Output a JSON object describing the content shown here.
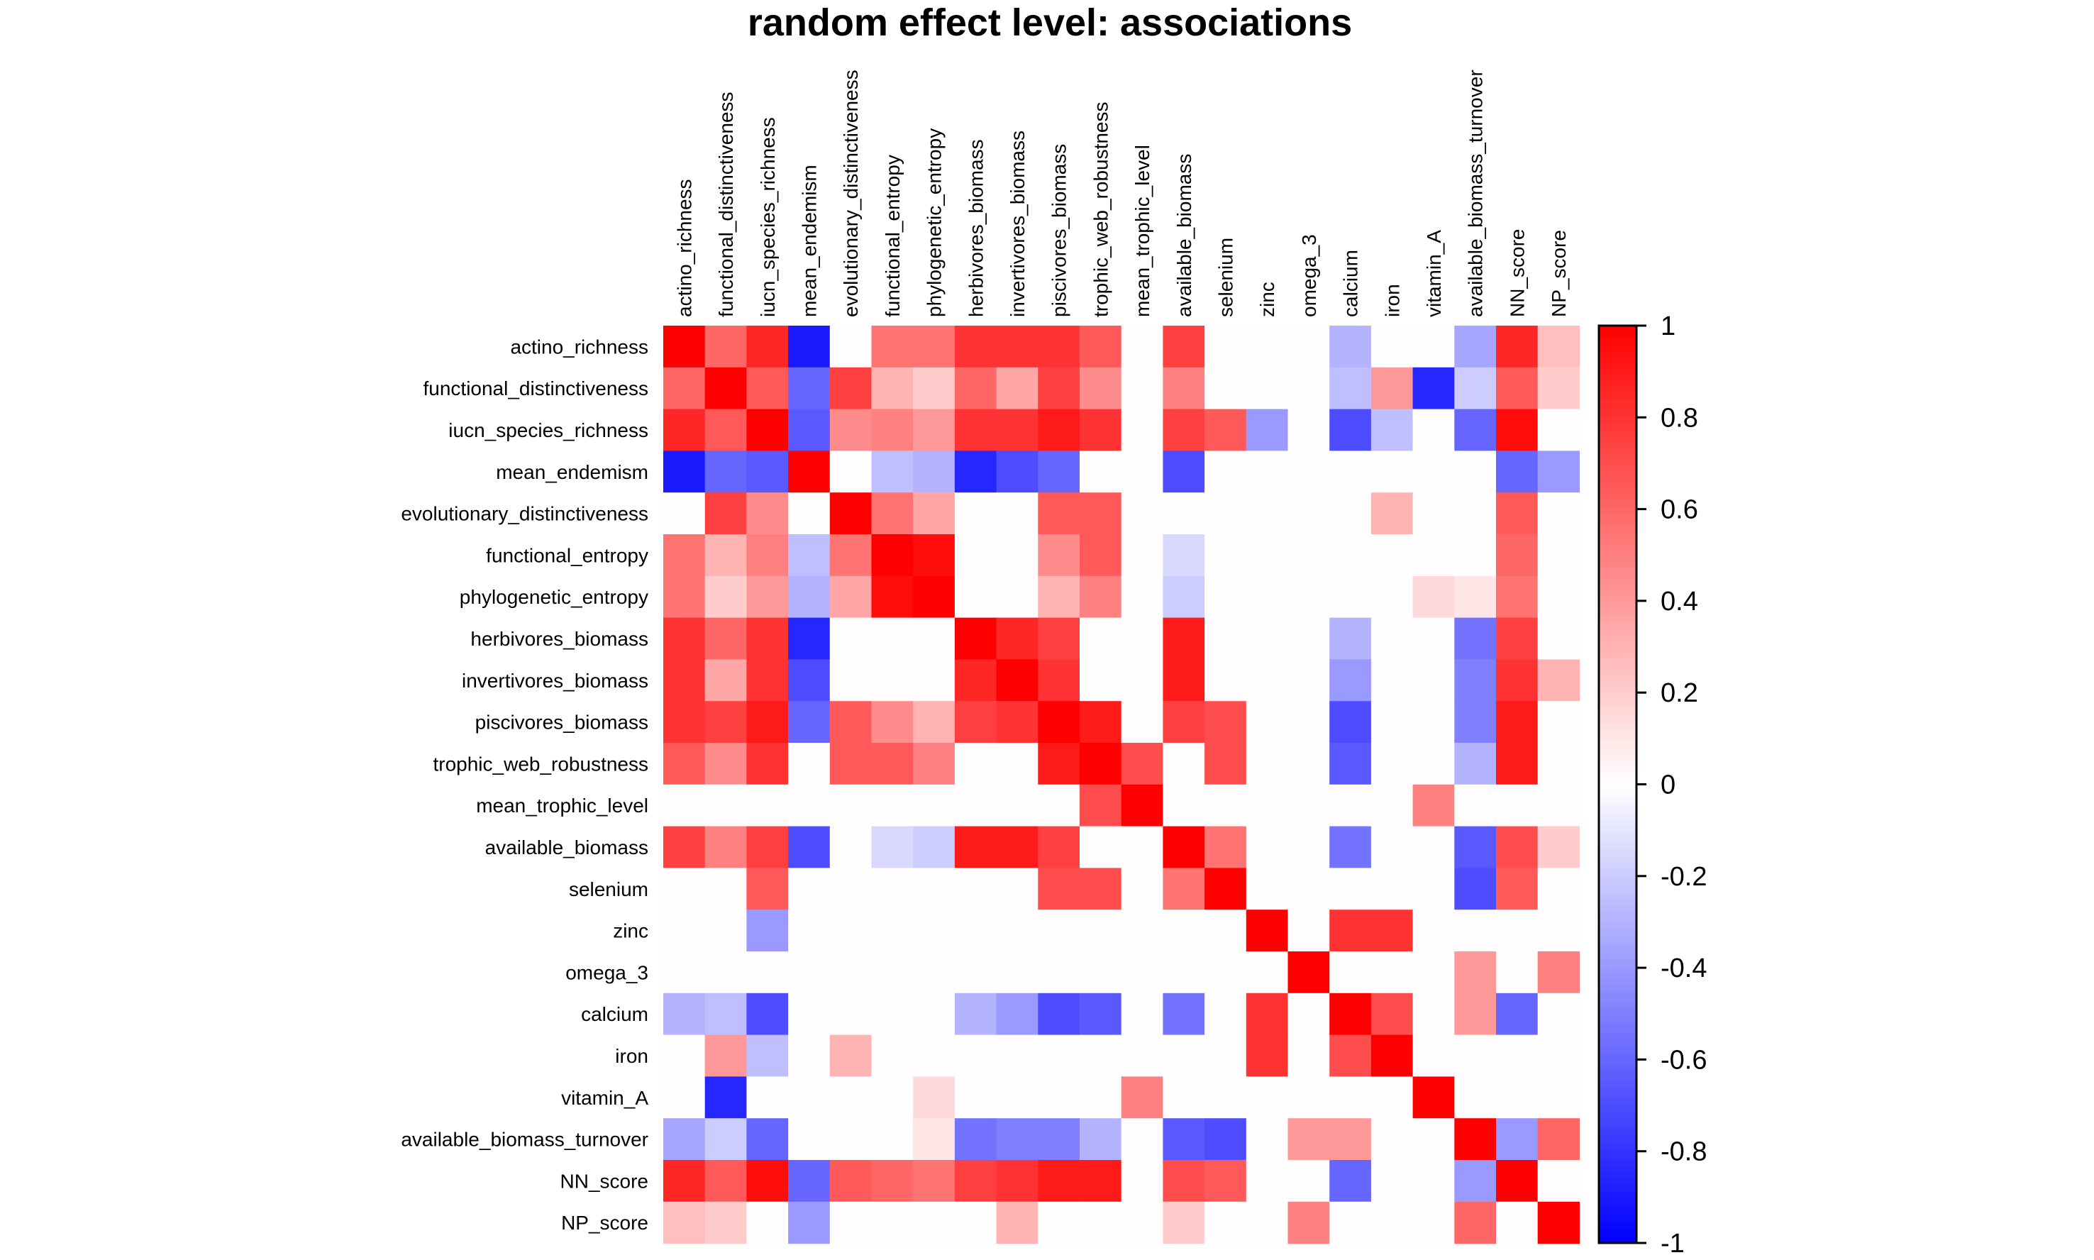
{
  "chart_data": {
    "type": "heatmap",
    "title": "random effect level: associations",
    "variables": [
      "actino_richness",
      "functional_distinctiveness",
      "iucn_species_richness",
      "mean_endemism",
      "evolutionary_distinctiveness",
      "functional_entropy",
      "phylogenetic_entropy",
      "herbivores_biomass",
      "invertivores_biomass",
      "piscivores_biomass",
      "trophic_web_robustness",
      "mean_trophic_level",
      "available_biomass",
      "selenium",
      "zinc",
      "omega_3",
      "calcium",
      "iron",
      "vitamin_A",
      "available_biomass_turnover",
      "NN_score",
      "NP_score"
    ],
    "matrix": [
      [
        1,
        0.6,
        0.85,
        -0.9,
        0,
        0.55,
        0.55,
        0.8,
        0.8,
        0.8,
        0.65,
        0,
        0.75,
        0,
        0,
        0,
        -0.3,
        0,
        0,
        -0.35,
        0.85,
        0.25
      ],
      [
        0.6,
        1,
        0.65,
        -0.6,
        0.75,
        0.3,
        0.2,
        0.6,
        0.35,
        0.75,
        0.45,
        0,
        0.5,
        0,
        0,
        0,
        -0.25,
        0.4,
        -0.85,
        -0.2,
        0.65,
        0.2
      ],
      [
        0.85,
        0.65,
        1,
        -0.65,
        0.45,
        0.5,
        0.4,
        0.8,
        0.8,
        0.9,
        0.8,
        0,
        0.75,
        0.65,
        -0.4,
        0,
        -0.7,
        -0.25,
        0,
        -0.6,
        0.95,
        0
      ],
      [
        -0.9,
        -0.6,
        -0.65,
        1,
        0,
        -0.25,
        -0.3,
        -0.85,
        -0.7,
        -0.6,
        0,
        0,
        -0.7,
        0,
        0,
        0,
        0,
        0,
        0,
        0,
        -0.6,
        -0.4
      ],
      [
        0,
        0.75,
        0.45,
        0,
        1,
        0.55,
        0.35,
        0,
        0,
        0.65,
        0.65,
        0,
        0,
        0,
        0,
        0,
        0,
        0.3,
        0,
        0,
        0.65,
        0
      ],
      [
        0.55,
        0.3,
        0.5,
        -0.25,
        0.55,
        1,
        0.95,
        0,
        0,
        0.45,
        0.65,
        0,
        -0.15,
        0,
        0,
        0,
        0,
        0,
        0,
        0,
        0.6,
        0
      ],
      [
        0.55,
        0.2,
        0.4,
        -0.3,
        0.35,
        0.95,
        1,
        0,
        0,
        0.3,
        0.5,
        0,
        -0.2,
        0,
        0,
        0,
        0,
        0,
        0.15,
        0.1,
        0.55,
        0
      ],
      [
        0.8,
        0.6,
        0.8,
        -0.85,
        0,
        0,
        0,
        1,
        0.85,
        0.75,
        0,
        0,
        0.9,
        0,
        0,
        0,
        -0.3,
        0,
        0,
        -0.55,
        0.75,
        0
      ],
      [
        0.8,
        0.35,
        0.8,
        -0.7,
        0,
        0,
        0,
        0.85,
        1,
        0.8,
        0,
        0,
        0.9,
        0,
        0,
        0,
        -0.4,
        0,
        0,
        -0.5,
        0.8,
        0.3
      ],
      [
        0.8,
        0.75,
        0.9,
        -0.6,
        0.65,
        0.45,
        0.3,
        0.75,
        0.8,
        1,
        0.9,
        0,
        0.75,
        0.7,
        0,
        0,
        -0.7,
        0,
        0,
        -0.5,
        0.9,
        0
      ],
      [
        0.65,
        0.45,
        0.8,
        0,
        0.65,
        0.65,
        0.5,
        0,
        0,
        0.9,
        1,
        0.7,
        0,
        0.7,
        0,
        0,
        -0.65,
        0,
        0,
        -0.3,
        0.9,
        0
      ],
      [
        0,
        0,
        0,
        0,
        0,
        0,
        0,
        0,
        0,
        0,
        0.7,
        1,
        0,
        0,
        0,
        0,
        0,
        0,
        0.5,
        0,
        0,
        0
      ],
      [
        0.75,
        0.5,
        0.75,
        -0.7,
        0,
        -0.15,
        -0.2,
        0.9,
        0.9,
        0.75,
        0,
        0,
        1,
        0.55,
        0,
        0,
        -0.55,
        0,
        0,
        -0.65,
        0.7,
        0.2
      ],
      [
        0,
        0,
        0.65,
        0,
        0,
        0,
        0,
        0,
        0,
        0.7,
        0.7,
        0,
        0.55,
        1,
        0,
        0,
        0,
        0,
        0,
        -0.7,
        0.65,
        0
      ],
      [
        0,
        0,
        -0.4,
        0,
        0,
        0,
        0,
        0,
        0,
        0,
        0,
        0,
        0,
        0,
        1,
        0,
        0.8,
        0.8,
        0,
        0,
        0,
        0
      ],
      [
        0,
        0,
        0,
        0,
        0,
        0,
        0,
        0,
        0,
        0,
        0,
        0,
        0,
        0,
        0,
        1,
        0,
        0,
        0,
        0.4,
        0,
        0.5
      ],
      [
        -0.3,
        -0.25,
        -0.7,
        0,
        0,
        0,
        0,
        -0.3,
        -0.4,
        -0.7,
        -0.65,
        0,
        -0.55,
        0,
        0.8,
        0,
        1,
        0.7,
        0,
        0.4,
        -0.6,
        0
      ],
      [
        0,
        0.4,
        -0.25,
        0,
        0.3,
        0,
        0,
        0,
        0,
        0,
        0,
        0,
        0,
        0,
        0.8,
        0,
        0.7,
        1,
        0,
        0,
        0,
        0
      ],
      [
        0,
        -0.85,
        0,
        0,
        0,
        0,
        0.15,
        0,
        0,
        0,
        0,
        0.5,
        0,
        0,
        0,
        0,
        0,
        0,
        1,
        0,
        0,
        0
      ],
      [
        -0.35,
        -0.2,
        -0.6,
        0,
        0,
        0,
        0.1,
        -0.55,
        -0.5,
        -0.5,
        -0.3,
        0,
        -0.65,
        -0.7,
        0,
        0.4,
        0.4,
        0,
        0,
        1,
        -0.4,
        0.6
      ],
      [
        0.85,
        0.65,
        0.95,
        -0.6,
        0.65,
        0.6,
        0.55,
        0.75,
        0.8,
        0.9,
        0.9,
        0,
        0.7,
        0.65,
        0,
        0,
        -0.6,
        0,
        0,
        -0.4,
        1,
        0
      ],
      [
        0.25,
        0.2,
        0,
        -0.4,
        0,
        0,
        0,
        0,
        0.3,
        0,
        0,
        0,
        0.2,
        0,
        0,
        0.5,
        0,
        0,
        0,
        0.6,
        0,
        1
      ]
    ],
    "color_scale": {
      "min": -1,
      "max": 1,
      "low_color": "#0000ff",
      "mid_color": "#ffffff",
      "high_color": "#ff0000",
      "ticks": [
        "1",
        "0.8",
        "0.6",
        "0.4",
        "0.2",
        "0",
        "-0.2",
        "-0.4",
        "-0.6",
        "-0.8",
        "-1"
      ]
    },
    "legend_position": "right",
    "grid": false
  }
}
